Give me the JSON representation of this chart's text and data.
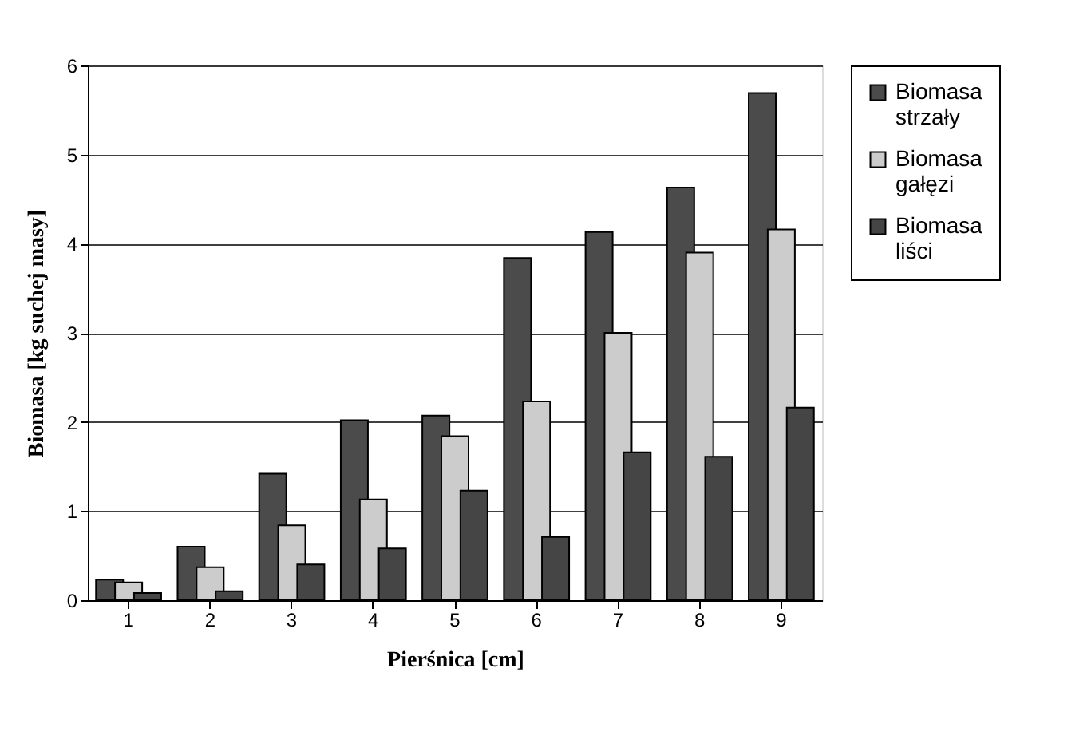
{
  "chart_data": {
    "type": "bar",
    "xlabel": "Pierśnica [cm]",
    "ylabel": "Biomasa [kg suchej masy]",
    "categories": [
      "1",
      "2",
      "3",
      "4",
      "5",
      "6",
      "7",
      "8",
      "9"
    ],
    "series": [
      {
        "name": "Biomasa strzały",
        "color": "#4b4b4b",
        "values": [
          0.23,
          0.6,
          1.42,
          2.02,
          2.07,
          3.84,
          4.13,
          4.63,
          5.69
        ]
      },
      {
        "name": "Biomasa gałęzi",
        "color": "#cccccc",
        "values": [
          0.2,
          0.37,
          0.84,
          1.13,
          1.84,
          2.23,
          3.0,
          3.9,
          4.16
        ]
      },
      {
        "name": "Biomasa liści",
        "color": "#454545",
        "values": [
          0.08,
          0.1,
          0.4,
          0.58,
          1.23,
          0.71,
          1.66,
          1.61,
          2.16
        ]
      }
    ],
    "ylim": [
      0,
      6
    ],
    "yticks": [
      0,
      1,
      2,
      3,
      4,
      5,
      6
    ],
    "grid": "y",
    "legend": "right"
  }
}
